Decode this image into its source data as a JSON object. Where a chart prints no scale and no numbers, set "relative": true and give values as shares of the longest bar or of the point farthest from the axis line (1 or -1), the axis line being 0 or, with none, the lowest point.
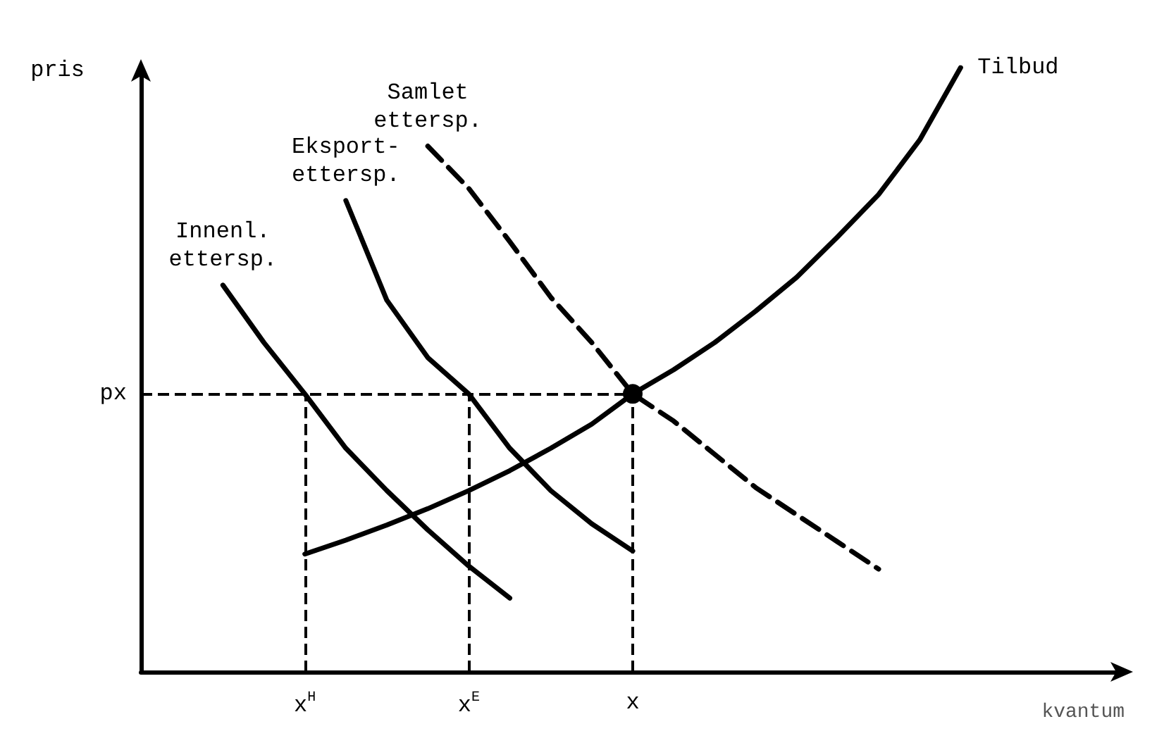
{
  "chart_data": {
    "type": "line",
    "relative": true,
    "xlabel": "kvantum",
    "ylabel": "pris",
    "grid": false,
    "tick_labels": "x",
    "marker": "none",
    "categories": [
      null,
      null,
      null,
      null,
      "x$^{H}$",
      null,
      null,
      null,
      "x$^{E}$",
      null,
      null,
      null,
      "x",
      null,
      null,
      null,
      null,
      null,
      null,
      null,
      null,
      null,
      null,
      null,
      null
    ],
    "series": [
      {
        "name": "Innenl. ettersp.",
        "color": "#000000",
        "values": [
          null,
          null,
          0.64,
          0.545,
          0.46,
          0.37,
          0.3,
          0.235,
          0.175,
          0.122,
          null,
          null,
          null,
          null,
          null,
          null,
          null,
          null,
          null,
          null,
          null,
          null,
          null,
          null,
          null
        ]
      },
      {
        "name": "Eksport-ettersp.",
        "color": "#000000",
        "values": [
          null,
          null,
          null,
          null,
          null,
          0.78,
          0.615,
          0.52,
          0.46,
          0.37,
          0.3,
          0.245,
          0.2,
          null,
          null,
          null,
          null,
          null,
          null,
          null,
          null,
          null,
          null,
          null,
          null
        ]
      },
      {
        "name": "Samlet ettersp.",
        "color": "#000000",
        "line_style": "dashed",
        "values": [
          null,
          null,
          null,
          null,
          null,
          null,
          null,
          0.87,
          0.8,
          0.712,
          0.62,
          0.545,
          0.46,
          0.415,
          0.36,
          0.305,
          0.26,
          0.215,
          0.17,
          null,
          null,
          null,
          null,
          null,
          null
        ]
      },
      {
        "name": "Tilbud",
        "color": "#000000",
        "values": [
          null,
          null,
          null,
          null,
          0.195,
          0.218,
          0.243,
          0.27,
          0.3,
          0.333,
          0.37,
          0.41,
          0.46,
          0.5,
          0.545,
          0.597,
          0.653,
          0.72,
          0.79,
          0.88,
          1.0,
          null,
          null,
          null,
          null
        ]
      },
      {
        "marker": "circle",
        "color": "#000000",
        "values": [
          null,
          null,
          null,
          null,
          null,
          null,
          null,
          null,
          null,
          null,
          null,
          null,
          0.46,
          null,
          null,
          null,
          null,
          null,
          null,
          null,
          null,
          null,
          null,
          null,
          null
        ]
      }
    ],
    "ref_lines": [
      {
        "axis": "y",
        "value": 0.46,
        "label": "px",
        "line_style": "dashed"
      },
      {
        "axis": "x",
        "value": "x$^{H}$",
        "line_style": "dashed"
      },
      {
        "axis": "x",
        "value": "x$^{E}$",
        "line_style": "dashed"
      },
      {
        "axis": "x",
        "value": "x",
        "line_style": "dashed"
      }
    ]
  }
}
